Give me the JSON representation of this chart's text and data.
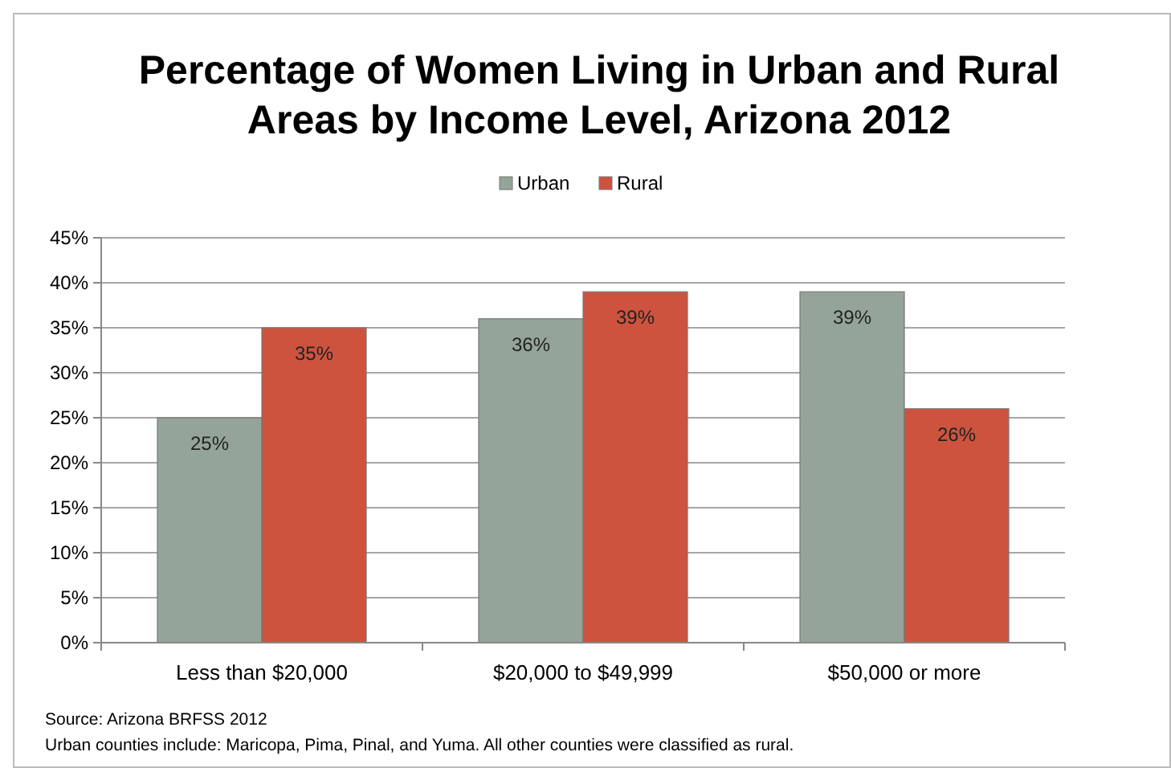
{
  "chart_data": {
    "type": "bar",
    "title": "Percentage of Women Living in Urban and Rural Areas by Income Level, Arizona 2012",
    "categories": [
      "Less than $20,000",
      "$20,000 to $49,999",
      "$50,000 or more"
    ],
    "series": [
      {
        "name": "Urban",
        "color": "#95a499",
        "values": [
          25,
          36,
          39
        ],
        "value_labels": [
          "25%",
          "36%",
          "39%"
        ]
      },
      {
        "name": "Rural",
        "color": "#cd533f",
        "values": [
          35,
          39,
          26
        ],
        "value_labels": [
          "35%",
          "39%",
          "26%"
        ]
      }
    ],
    "ylim": [
      0,
      45
    ],
    "yticks": [
      {
        "value": 0,
        "label": "0%"
      },
      {
        "value": 5,
        "label": "5%"
      },
      {
        "value": 10,
        "label": "10%"
      },
      {
        "value": 15,
        "label": "15%"
      },
      {
        "value": 20,
        "label": "20%"
      },
      {
        "value": 25,
        "label": "25%"
      },
      {
        "value": 30,
        "label": "30%"
      },
      {
        "value": 35,
        "label": "35%"
      },
      {
        "value": 40,
        "label": "40%"
      },
      {
        "value": 45,
        "label": "45%"
      }
    ],
    "grid": "y",
    "legend": "top",
    "annotations": [
      "Source: Arizona BRFSS 2012",
      "Urban counties include: Maricopa, Pima, Pinal, and Yuma.  All other counties were classified as rural."
    ]
  }
}
